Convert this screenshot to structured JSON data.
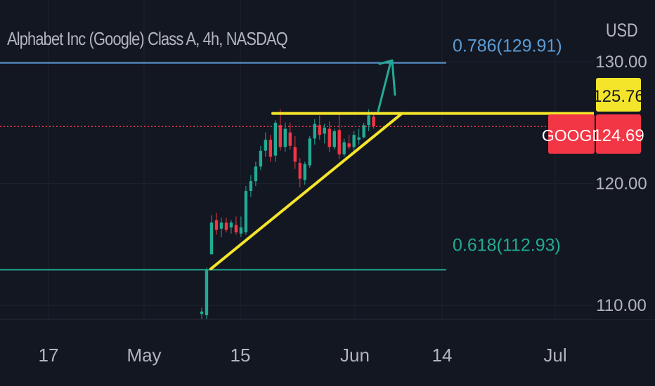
{
  "chart_data": {
    "type": "candlestick",
    "title": "Alphabet Inc (Google) Class A, 4h, NASDAQ",
    "currency": "USD",
    "symbol": "GOOGL",
    "last_price": 124.69,
    "target_price": 125.76,
    "x_ticks": [
      "17",
      "May",
      "15",
      "Jun",
      "14",
      "Jul"
    ],
    "y_ticks": [
      {
        "value": 130,
        "label": "130.00"
      },
      {
        "value": 120,
        "label": "120.00"
      },
      {
        "value": 110,
        "label": "110.00"
      }
    ],
    "ylim": [
      108.86,
      135.07
    ],
    "fib_levels": [
      {
        "ratio": "0.786",
        "price": 129.91,
        "label": "0.786(129.91)",
        "color": "#5b9cd6"
      },
      {
        "ratio": "0.618",
        "price": 112.93,
        "label": "0.618(112.93)",
        "color": "#22ab94"
      }
    ],
    "resistance": {
      "price": 125.76,
      "color": "#f5e52a"
    },
    "support_trend": {
      "start_price": 113.0,
      "end_price": 125.76,
      "color": "#f5e52a"
    },
    "projection_arrow": {
      "target_price": 130.0,
      "color": "#22ab94"
    },
    "candles": [
      {
        "o": 109.3,
        "h": 109.8,
        "l": 108.9,
        "c": 109.5
      },
      {
        "o": 109.2,
        "h": 113.1,
        "l": 108.9,
        "c": 112.9
      },
      {
        "o": 114.2,
        "h": 117.4,
        "l": 114.2,
        "c": 116.8
      },
      {
        "o": 117.0,
        "h": 117.6,
        "l": 115.8,
        "c": 116.2
      },
      {
        "o": 116.3,
        "h": 117.2,
        "l": 115.6,
        "c": 116.8
      },
      {
        "o": 116.8,
        "h": 117.2,
        "l": 116.0,
        "c": 116.2
      },
      {
        "o": 116.4,
        "h": 117.0,
        "l": 115.9,
        "c": 116.8
      },
      {
        "o": 116.6,
        "h": 117.3,
        "l": 115.8,
        "c": 116.0
      },
      {
        "o": 115.9,
        "h": 117.3,
        "l": 115.6,
        "c": 116.4
      },
      {
        "o": 116.0,
        "h": 119.8,
        "l": 115.8,
        "c": 119.4
      },
      {
        "o": 119.4,
        "h": 120.7,
        "l": 118.9,
        "c": 120.2
      },
      {
        "o": 120.2,
        "h": 121.8,
        "l": 119.8,
        "c": 121.4
      },
      {
        "o": 121.4,
        "h": 123.1,
        "l": 121.1,
        "c": 122.7
      },
      {
        "o": 122.7,
        "h": 124.2,
        "l": 122.2,
        "c": 123.6
      },
      {
        "o": 123.6,
        "h": 124.0,
        "l": 121.8,
        "c": 122.2
      },
      {
        "o": 122.3,
        "h": 125.2,
        "l": 121.8,
        "c": 125.0
      },
      {
        "o": 124.8,
        "h": 126.1,
        "l": 122.7,
        "c": 123.0
      },
      {
        "o": 123.0,
        "h": 125.0,
        "l": 122.6,
        "c": 124.5
      },
      {
        "o": 124.2,
        "h": 125.0,
        "l": 122.8,
        "c": 123.1
      },
      {
        "o": 123.0,
        "h": 123.9,
        "l": 121.2,
        "c": 121.8
      },
      {
        "o": 121.7,
        "h": 122.1,
        "l": 119.7,
        "c": 120.4
      },
      {
        "o": 120.3,
        "h": 121.8,
        "l": 119.9,
        "c": 121.6
      },
      {
        "o": 121.5,
        "h": 123.9,
        "l": 121.3,
        "c": 123.7
      },
      {
        "o": 123.7,
        "h": 125.3,
        "l": 123.2,
        "c": 124.9
      },
      {
        "o": 124.8,
        "h": 125.6,
        "l": 123.6,
        "c": 124.0
      },
      {
        "o": 124.1,
        "h": 124.9,
        "l": 123.3,
        "c": 124.6
      },
      {
        "o": 124.5,
        "h": 125.1,
        "l": 122.6,
        "c": 123.0
      },
      {
        "o": 123.0,
        "h": 124.5,
        "l": 122.8,
        "c": 124.3
      },
      {
        "o": 124.4,
        "h": 125.8,
        "l": 122.0,
        "c": 122.4
      },
      {
        "o": 122.4,
        "h": 123.7,
        "l": 122.2,
        "c": 123.4
      },
      {
        "o": 123.3,
        "h": 124.0,
        "l": 122.8,
        "c": 123.0
      },
      {
        "o": 123.0,
        "h": 124.3,
        "l": 122.7,
        "c": 124.0
      },
      {
        "o": 123.6,
        "h": 124.5,
        "l": 123.2,
        "c": 123.8
      },
      {
        "o": 123.8,
        "h": 125.0,
        "l": 123.7,
        "c": 124.8
      },
      {
        "o": 124.8,
        "h": 126.1,
        "l": 124.3,
        "c": 125.6
      },
      {
        "o": 125.5,
        "h": 125.7,
        "l": 124.5,
        "c": 124.7
      }
    ]
  },
  "colors": {
    "background": "#131722",
    "up": "#22ab94",
    "down": "#f23645",
    "axis_text": "#b2b5be",
    "price_line": "#f23645",
    "target_badge": "#f5e52a",
    "symbol_badge": "#f23645"
  }
}
